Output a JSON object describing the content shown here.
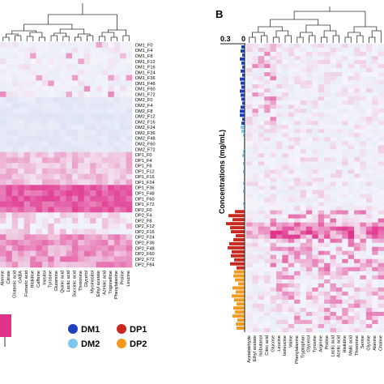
{
  "panel_b_label": "B",
  "left_panel": {
    "row_labels": [
      "DM1_F0",
      "DM1_F4",
      "DM1_F8",
      "DM1_F12",
      "DM1_F16",
      "DM1_F24",
      "DM1_F36",
      "DM1_F46",
      "DM1_F60",
      "DM1_F72",
      "DM2_F0",
      "DM2_F4",
      "DM2_F8",
      "DM2_F12",
      "DM2_F16",
      "DM2_F24",
      "DM2_F36",
      "DM2_F48",
      "DM2_F60",
      "DM2_F72",
      "DP1_F0",
      "DP1_F4",
      "DP1_F8",
      "DP1_F12",
      "DP1_F16",
      "DP1_F24",
      "DP1_F36",
      "DP1_F48",
      "DP1_F60",
      "DP1_F72",
      "DP2_F0",
      "DP2_F4",
      "DP2_F8",
      "DP2_F12",
      "DP2_F16",
      "DP2_F24",
      "DP2_F36",
      "DP2_F48",
      "DP2_F60",
      "DP2_F72",
      "DP2_F84"
    ],
    "col_labels": [
      "Alanine",
      "Citrate",
      "Glutamic acid",
      "GABA",
      "Fumaric acid",
      "Histidine",
      "Caffeine",
      "Inositol",
      "Tyrosine",
      "Glutamine",
      "Quinic acid",
      "Lactic acid",
      "Succinic acid",
      "Threonine",
      "Glycerol",
      "Myoinositol",
      "Ethyl acetate",
      "Azelaic acid",
      "Trigonelline",
      "Phenylalanine",
      "Proline",
      "Leucine"
    ]
  },
  "right_panel": {
    "axis_top_ticks": [
      "0.3",
      "0"
    ],
    "ylabel": "Concentrations (mg/mL)",
    "col_labels": [
      "Acetaldehyde",
      "Ethyl acetate",
      "Isobutanol",
      "Citric acid",
      "Glucose",
      "Leucine",
      "Isoleucine",
      "Valine",
      "Phenylalanine",
      "Tryptophan",
      "Glycerol",
      "Tyrosine",
      "Arginine",
      "Proline",
      "Lactic acid",
      "Acetic acid",
      "Histidine",
      "Malic acid",
      "Threonine",
      "Serine",
      "Glycine",
      "Alanine",
      "Choline"
    ]
  },
  "legend": {
    "items": [
      {
        "label": "DM1",
        "color": "#1f3fbf"
      },
      {
        "label": "DP1",
        "color": "#c8281e"
      },
      {
        "label": "DM2",
        "color": "#7fc7ef"
      },
      {
        "label": "DP2",
        "color": "#f29a1f"
      }
    ]
  },
  "chart_data": [
    {
      "type": "heatmap",
      "rows": 41,
      "cols": 22,
      "row_groups": [
        "DM1",
        "DM2",
        "DP1",
        "DP2"
      ],
      "colors": {
        "low": "#c7d3f0",
        "mid": "#f4f4fa",
        "high": "#e0338c"
      }
    },
    {
      "type": "bar",
      "orientation": "horizontal",
      "xlim": [
        0.3,
        0
      ],
      "groups": [
        "DM1",
        "DM2",
        "DP1",
        "DP2"
      ],
      "values": [
        0.04,
        0.05,
        0.03,
        0.06,
        0.04,
        0.03,
        0.05,
        0.03,
        0.06,
        0.05,
        0.04,
        0.06,
        0.05,
        0.04,
        0.03,
        0.05,
        0.06,
        0.06,
        0.03,
        0.04,
        0.05,
        0.04,
        0.02,
        0.01,
        0.01,
        0.01,
        0.02,
        0.03,
        0.01,
        0.02,
        0.01,
        0.02,
        0.01,
        0.01,
        0.02,
        0.01,
        0.02,
        0.01,
        0.01,
        0.02,
        0.01,
        0.12,
        0.2,
        0.15,
        0.23,
        0.18,
        0.17,
        0.11,
        0.14,
        0.19,
        0.21,
        0.16,
        0.17,
        0.13,
        0.18,
        0.1,
        0.13,
        0.14,
        0.12,
        0.08,
        0.15,
        0.11,
        0.16,
        0.13,
        0.1,
        0.14,
        0.12,
        0.15,
        0.09,
        0.11,
        0.1
      ]
    }
  ]
}
